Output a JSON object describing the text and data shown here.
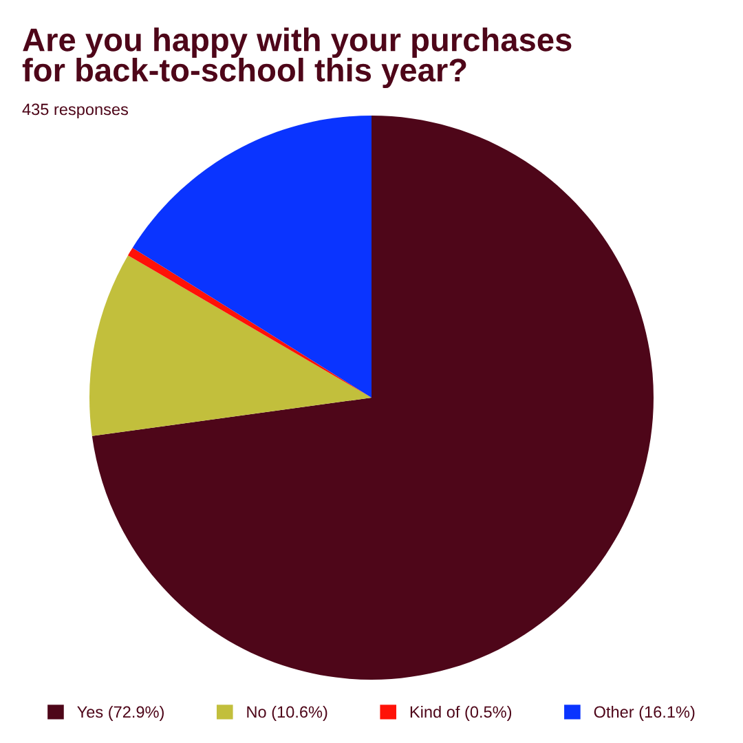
{
  "chart_data": {
    "type": "pie",
    "title": "Are you happy with your purchases\nfor back-to-school this year?",
    "subtitle": "435 responses",
    "categories": [
      "Yes (72.9%)",
      "No (10.6%)",
      "Kind of (0.5%)",
      "Other (16.1%)"
    ],
    "values": [
      72.9,
      10.6,
      0.5,
      16.1
    ],
    "colors": [
      "#4e0619",
      "#c2bf3c",
      "#ff1208",
      "#0a34ff"
    ],
    "legend": "bottom"
  }
}
